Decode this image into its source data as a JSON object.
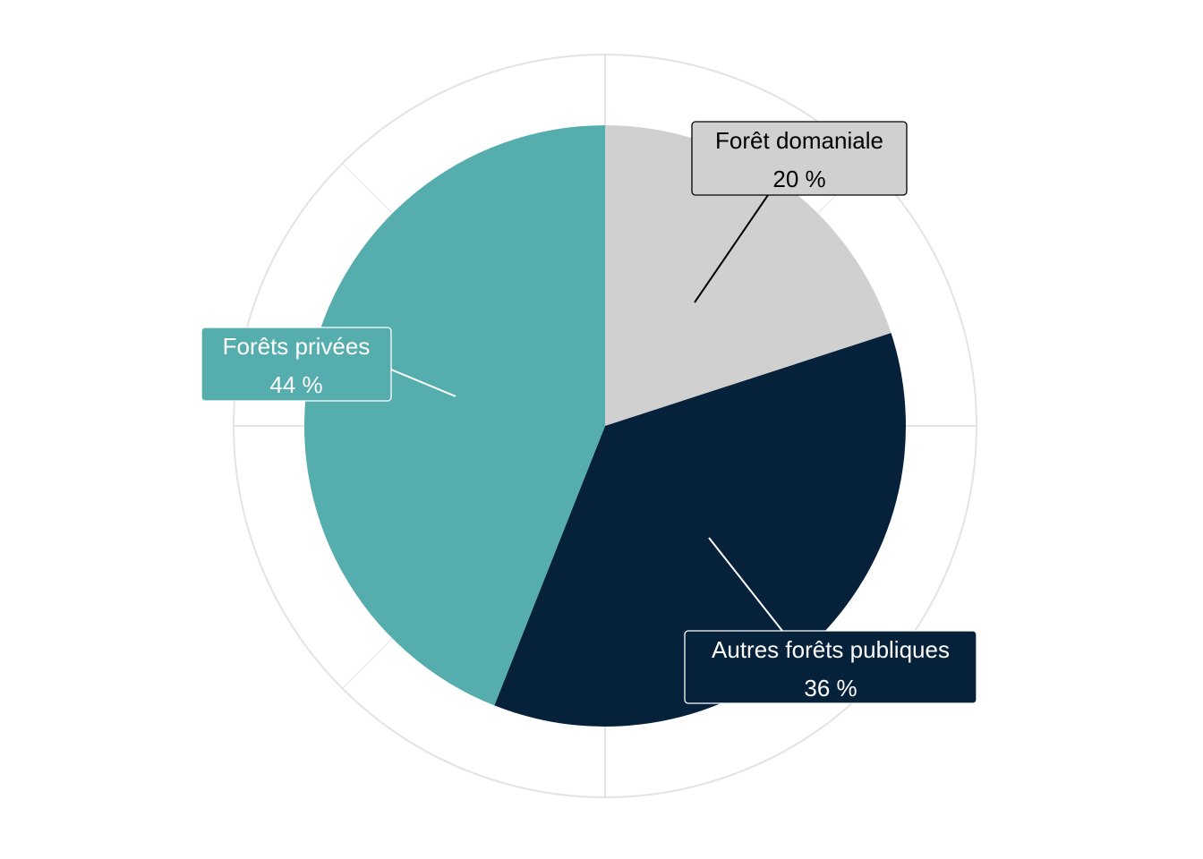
{
  "chart_data": {
    "type": "pie",
    "title": "",
    "slices": [
      {
        "name": "Forêt domaniale",
        "value": 20,
        "label": "20 %",
        "color": "#d0d0d0",
        "text_color": "#000000"
      },
      {
        "name": "Autres forêts publiques",
        "value": 36,
        "label": "36 %",
        "color": "#06223b",
        "text_color": "#ffffff"
      },
      {
        "name": "Forêts privées",
        "value": 44,
        "label": "44 %",
        "color": "#56adad",
        "text_color": "#ffffff"
      }
    ],
    "start": "top",
    "direction": "clockwise",
    "grid": true,
    "legend": "none"
  }
}
